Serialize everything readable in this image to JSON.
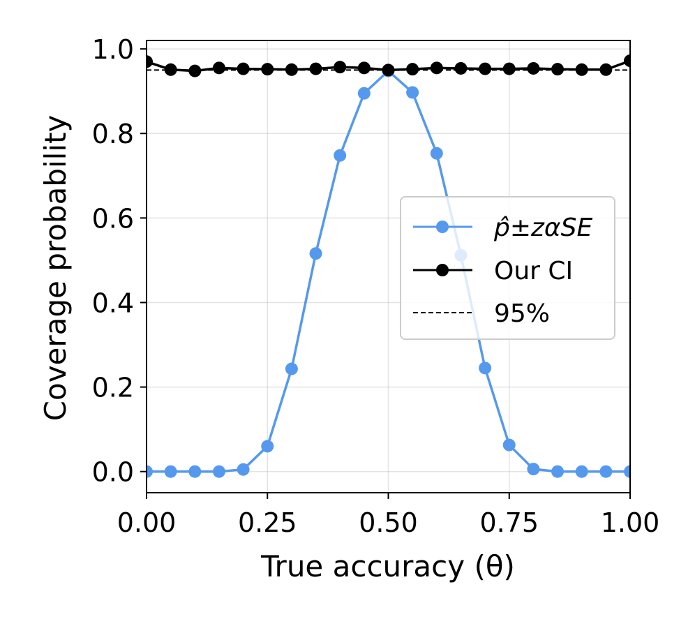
{
  "chart_data": {
    "type": "line",
    "title": "",
    "xlabel": "True accuracy (θ)",
    "ylabel": "Coverage probability",
    "xlim": [
      0.0,
      1.0
    ],
    "ylim": [
      -0.05,
      1.02
    ],
    "xticks": [
      0.0,
      0.25,
      0.5,
      0.75,
      1.0
    ],
    "xtick_labels": [
      "0.00",
      "0.25",
      "0.50",
      "0.75",
      "1.00"
    ],
    "yticks": [
      0.0,
      0.2,
      0.4,
      0.6,
      0.8,
      1.0
    ],
    "ytick_labels": [
      "0.0",
      "0.2",
      "0.4",
      "0.6",
      "0.8",
      "1.0"
    ],
    "grid": true,
    "legend_position": "center-right",
    "x": [
      0.0,
      0.05,
      0.1,
      0.15,
      0.2,
      0.25,
      0.3,
      0.35,
      0.4,
      0.45,
      0.5,
      0.55,
      0.6,
      0.65,
      0.7,
      0.75,
      0.8,
      0.85,
      0.9,
      0.95,
      1.0
    ],
    "series": [
      {
        "name": "p̂±zαSE",
        "color": "#5599ee",
        "marker": "circle",
        "values": [
          0.0,
          0.0,
          0.0,
          0.0,
          0.005,
          0.06,
          0.243,
          0.516,
          0.748,
          0.895,
          0.948,
          0.897,
          0.753,
          0.512,
          0.245,
          0.063,
          0.006,
          0.0,
          0.0,
          0.0,
          0.0
        ]
      },
      {
        "name": "Our CI",
        "color": "#000000",
        "marker": "circle",
        "values": [
          0.97,
          0.951,
          0.948,
          0.955,
          0.953,
          0.952,
          0.951,
          0.953,
          0.957,
          0.955,
          0.95,
          0.952,
          0.955,
          0.954,
          0.953,
          0.953,
          0.954,
          0.952,
          0.951,
          0.951,
          0.972
        ]
      },
      {
        "name": "95%",
        "color": "#000000",
        "style": "dashed",
        "marker": "none",
        "value": 0.95
      }
    ]
  }
}
